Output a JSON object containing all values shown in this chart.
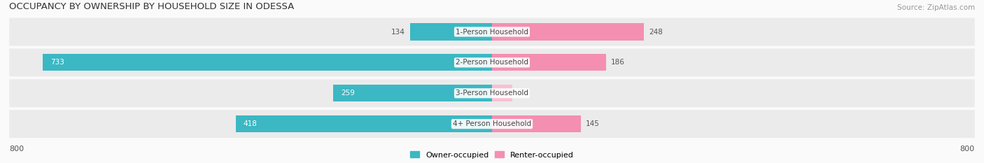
{
  "title": "OCCUPANCY BY OWNERSHIP BY HOUSEHOLD SIZE IN ODESSA",
  "source": "Source: ZipAtlas.com",
  "categories": [
    "1-Person Household",
    "2-Person Household",
    "3-Person Household",
    "4+ Person Household"
  ],
  "owner_values": [
    134,
    733,
    259,
    418
  ],
  "renter_values": [
    248,
    186,
    33,
    145
  ],
  "owner_color": "#3BB8C3",
  "renter_color": "#F48FB1",
  "renter_color_light": "#F9C0D4",
  "row_bg_color": "#EBEBEB",
  "axis_limit": 800,
  "title_fontsize": 9.5,
  "source_fontsize": 7.5,
  "label_fontsize": 7.5,
  "value_fontsize": 7.5,
  "legend_fontsize": 8,
  "axis_label_fontsize": 8,
  "background_color": "#FAFAFA"
}
